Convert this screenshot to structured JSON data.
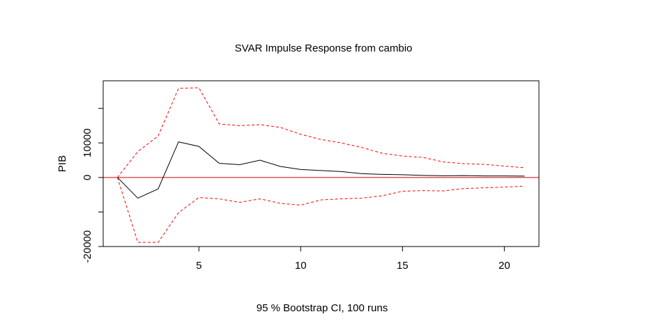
{
  "chart_data": {
    "type": "line",
    "title": "SVAR Impulse Response from cambio",
    "xlabel": "95 % Bootstrap CI,  100 runs",
    "ylabel": "PIB",
    "xlim": [
      0.3,
      21.7
    ],
    "ylim": [
      -20000,
      28000
    ],
    "x_ticks": [
      5,
      10,
      15,
      20
    ],
    "x_tick_labels": [
      "5",
      "10",
      "15",
      "20"
    ],
    "y_ticks": [
      -20000,
      -10000,
      0,
      10000,
      20000
    ],
    "y_tick_labels": [
      "-20000",
      "",
      "0",
      "10000",
      ""
    ],
    "zero_line": {
      "y": 0,
      "color": "#cc0000"
    },
    "x": [
      1,
      2,
      3,
      4,
      5,
      6,
      7,
      8,
      9,
      10,
      11,
      12,
      13,
      14,
      15,
      16,
      17,
      18,
      19,
      20,
      21
    ],
    "series": [
      {
        "role": "response",
        "color": "#000000",
        "dash": "solid",
        "values": [
          0,
          -6000,
          -3300,
          10300,
          9000,
          4100,
          3700,
          5000,
          3200,
          2300,
          2000,
          1700,
          1100,
          900,
          800,
          600,
          500,
          550,
          450,
          450,
          400
        ]
      },
      {
        "role": "upper-ci",
        "color": "#ff0000",
        "dash": "dashed",
        "values": [
          0,
          7500,
          12000,
          25800,
          26000,
          15500,
          15000,
          15300,
          14500,
          12500,
          11000,
          10000,
          8700,
          7000,
          6200,
          5800,
          4500,
          4000,
          3800,
          3300,
          2800
        ]
      },
      {
        "role": "lower-ci",
        "color": "#ff0000",
        "dash": "dashed",
        "values": [
          0,
          -18800,
          -18800,
          -10200,
          -5800,
          -6200,
          -7200,
          -6200,
          -7500,
          -8000,
          -6500,
          -6200,
          -6000,
          -5300,
          -4000,
          -3800,
          -3900,
          -3200,
          -3000,
          -2800,
          -2500
        ]
      }
    ]
  }
}
